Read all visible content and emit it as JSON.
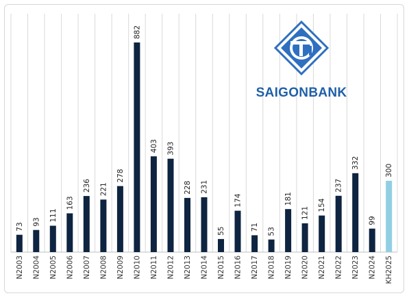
{
  "logo": {
    "brand_text": "SAIGONBANK",
    "icon": "saigonbank-diamond-logo",
    "color": "#1f5fa8"
  },
  "chart_data": {
    "type": "bar",
    "categories": [
      "N2003",
      "N2004",
      "N2005",
      "N2006",
      "N2007",
      "N2008",
      "N2009",
      "N2010",
      "N2011",
      "N2012",
      "N2013",
      "N2014",
      "N2015",
      "N2016",
      "N2017",
      "N2018",
      "N2019",
      "N2020",
      "N2021",
      "N2022",
      "N2023",
      "N2024",
      "KH2025"
    ],
    "values": [
      73,
      93,
      111,
      163,
      236,
      221,
      278,
      882,
      403,
      393,
      228,
      231,
      55,
      174,
      71,
      53,
      181,
      121,
      154,
      237,
      332,
      99,
      300
    ],
    "data_labels": [
      "73",
      "93",
      "111",
      "163",
      "236",
      "221",
      "278",
      "882",
      "403",
      "393",
      "228",
      "231",
      "55",
      "174",
      "71",
      "53",
      "181",
      "121",
      "154",
      "237",
      "332",
      "99",
      "300"
    ],
    "title": "",
    "xlabel": "",
    "ylabel": "",
    "ylim": [
      0,
      882
    ],
    "grid": "vertical",
    "legend": "none",
    "colors": {
      "bar": "#0e2440",
      "highlight_bar": "#91cfe2",
      "grid": "#d9d9d9"
    },
    "highlight_category": "KH2025"
  }
}
